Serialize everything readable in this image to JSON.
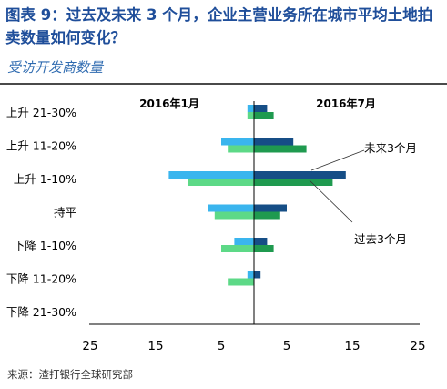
{
  "title": "图表 9：过去及未来 3 个月，企业主营业务所在城市平均土地拍卖数量如何变化？",
  "subtitle": "受访开发商数量",
  "source": "来源：渣打银行全球研究部",
  "colors": {
    "left_past": "#5dd987",
    "left_future": "#3ab5ee",
    "right_past": "#1f9a4f",
    "right_future": "#164e86"
  },
  "chart_data": {
    "type": "bar",
    "orientation": "horizontal",
    "layout": "back-to-back",
    "categories": [
      "上升 21-30%",
      "上升 11-20%",
      "上升 1-10%",
      "持平",
      "下降 1-10%",
      "下降 11-20%",
      "下降 21-30%"
    ],
    "panel_labels": [
      "2016年1月",
      "2016年7月"
    ],
    "xlim": [
      0,
      25
    ],
    "x_ticks": [
      "25",
      "15",
      "5",
      "5",
      "15",
      "25"
    ],
    "series": [
      {
        "panel": "2016年1月",
        "name": "未来3个月",
        "values": [
          1,
          5,
          13,
          7,
          3,
          1,
          0
        ]
      },
      {
        "panel": "2016年1月",
        "name": "过去3个月",
        "values": [
          1,
          4,
          10,
          6,
          5,
          4,
          0
        ]
      },
      {
        "panel": "2016年7月",
        "name": "未来3个月",
        "values": [
          2,
          6,
          14,
          5,
          2,
          1,
          0
        ]
      },
      {
        "panel": "2016年7月",
        "name": "过去3个月",
        "values": [
          3,
          8,
          12,
          4,
          3,
          0,
          0
        ]
      }
    ],
    "annotations": [
      "未来3个月",
      "过去3个月"
    ],
    "legend": "annotations"
  }
}
